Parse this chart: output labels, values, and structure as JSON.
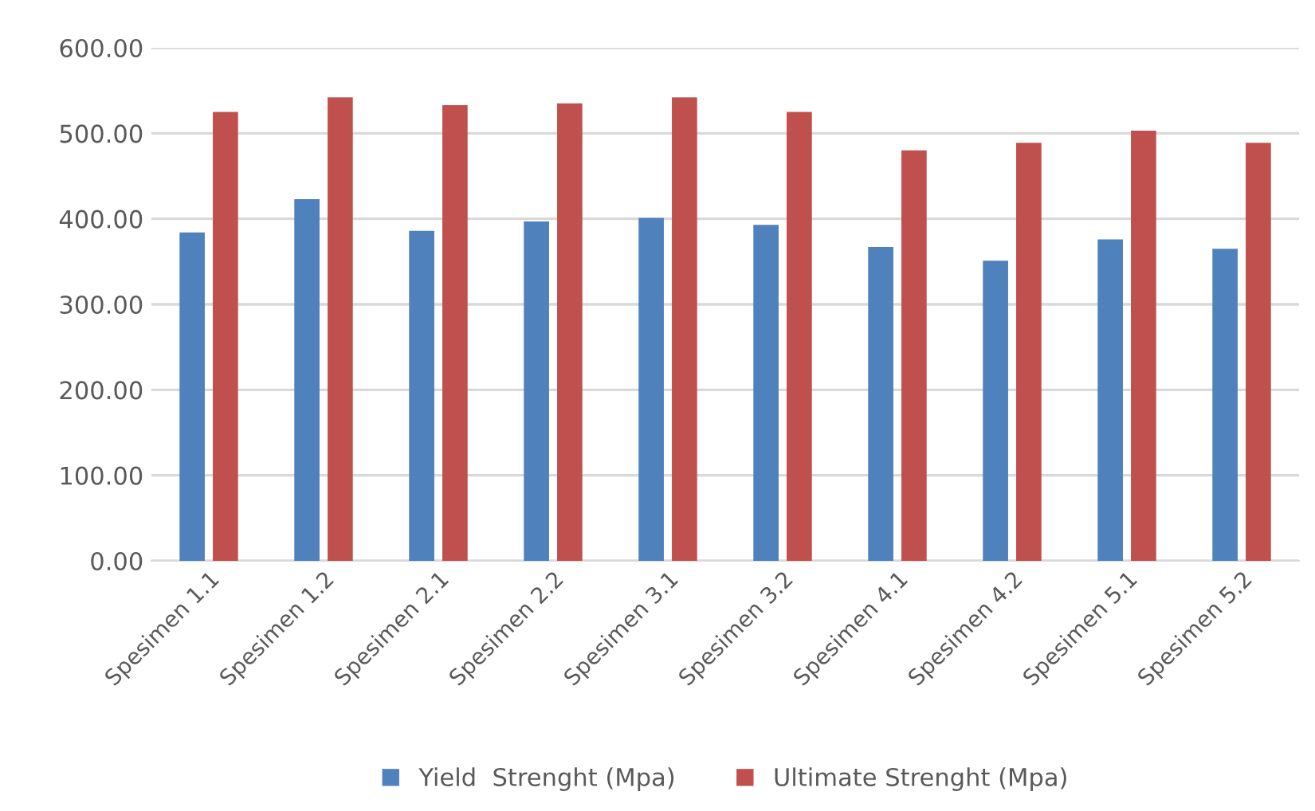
{
  "chart_data": {
    "type": "bar",
    "categories": [
      "Spesimen 1.1",
      "Spesimen 1.2",
      "Spesimen 2.1",
      "Spesimen 2.2",
      "Spesimen 3.1",
      "Spesimen 3.2",
      "Spesimen 4.1",
      "Spesimen 4.2",
      "Spesimen 5.1",
      "Spesimen 5.2"
    ],
    "series": [
      {
        "name": "Yield  Strenght (Mpa)",
        "color": "#4f81bd",
        "values": [
          384,
          423,
          386,
          397,
          401,
          393,
          367,
          351,
          376,
          365
        ]
      },
      {
        "name": "Ultimate Strenght (Mpa)",
        "color": "#c0504d",
        "values": [
          525,
          542,
          533,
          535,
          542,
          525,
          480,
          489,
          503,
          489
        ]
      }
    ],
    "ylim": [
      0,
      600
    ],
    "yticks": [
      {
        "value": 0,
        "label": "0.00"
      },
      {
        "value": 100,
        "label": "100.00"
      },
      {
        "value": 200,
        "label": "200.00"
      },
      {
        "value": 300,
        "label": "300.00"
      },
      {
        "value": 400,
        "label": "400.00"
      },
      {
        "value": 500,
        "label": "500.00"
      },
      {
        "value": 600,
        "label": "600.00"
      }
    ],
    "grid": "y",
    "legend": "bottom"
  }
}
